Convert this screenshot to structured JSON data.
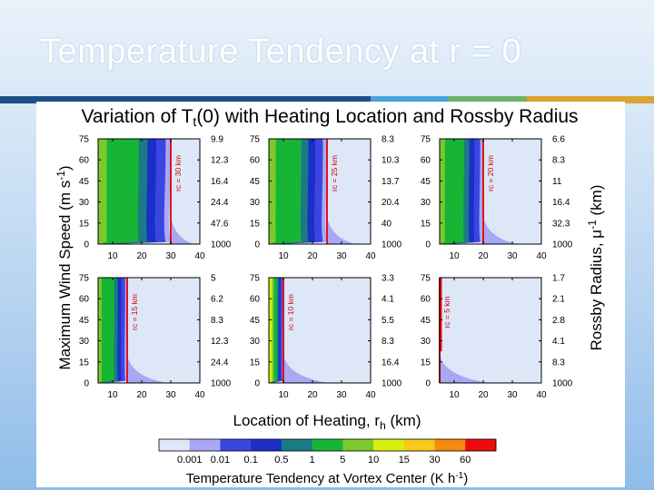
{
  "slide": {
    "title": "Temperature Tendency at r = 0",
    "accent_colors": [
      "#1d4f86",
      "#4aa3d8",
      "#6fb36a",
      "#d9a531"
    ]
  },
  "chart_data": {
    "type": "heatmap",
    "title": {
      "main": "Variation of T",
      "sub": "t",
      "rest": "(0) with Heating Location and Rossby Radius"
    },
    "xlabel": {
      "main": "Location of Heating, r",
      "sub": "h",
      "rest": " (km)"
    },
    "ylabel": {
      "main": "Maximum Wind Speed (m s",
      "sup": "-1",
      "rest": ")"
    },
    "y2label": {
      "main": "Rossby Radius, μ",
      "sup": "-1",
      "rest": " (km)"
    },
    "x_ticks": [
      "10",
      "20",
      "30",
      "40"
    ],
    "x_zero": "0",
    "y_ticks": [
      "0",
      "15",
      "30",
      "45",
      "60",
      "75"
    ],
    "xlim": [
      5,
      40
    ],
    "ylim": [
      0,
      75
    ],
    "panels": [
      {
        "rc_label": "rc = 30 km",
        "rc": 30,
        "rossby": [
          "9.9",
          "12.3",
          "16.4",
          "24.4",
          "47.6",
          "1000"
        ]
      },
      {
        "rc_label": "rc = 25 km",
        "rc": 25,
        "rossby": [
          "8.3",
          "10.3",
          "13.7",
          "20.4",
          "40",
          "1000"
        ]
      },
      {
        "rc_label": "rc = 20 km",
        "rc": 20,
        "rossby": [
          "6.6",
          "8.3",
          "11",
          "16.4",
          "32.3",
          "1000"
        ]
      },
      {
        "rc_label": "rc = 15 km",
        "rc": 15,
        "rossby": [
          "5",
          "6.2",
          "8.3",
          "12.3",
          "24.4",
          "1000"
        ]
      },
      {
        "rc_label": "rc = 10 km",
        "rc": 10,
        "rossby": [
          "3.3",
          "4.1",
          "5.5",
          "8.3",
          "16.4",
          "1000"
        ]
      },
      {
        "rc_label": "rc = 5 km",
        "rc": 5,
        "rossby": [
          "1.7",
          "2.1",
          "2.8",
          "4.1",
          "8.3",
          "1000"
        ]
      }
    ],
    "colorbar": {
      "label": {
        "main": "Temperature Tendency at Vortex Center (K h",
        "sup": "-1",
        "rest": ")"
      },
      "levels": [
        "0.001",
        "0.01",
        "0.1",
        "0.5",
        "1",
        "5",
        "10",
        "15",
        "30",
        "60"
      ],
      "colors": [
        "#dde7f7",
        "#a8a8f4",
        "#3b45e0",
        "#1b2fc8",
        "#1a7a86",
        "#16b535",
        "#7cc92e",
        "#d8ee10",
        "#f7c91b",
        "#f58b0f",
        "#ee0b0b"
      ]
    }
  }
}
